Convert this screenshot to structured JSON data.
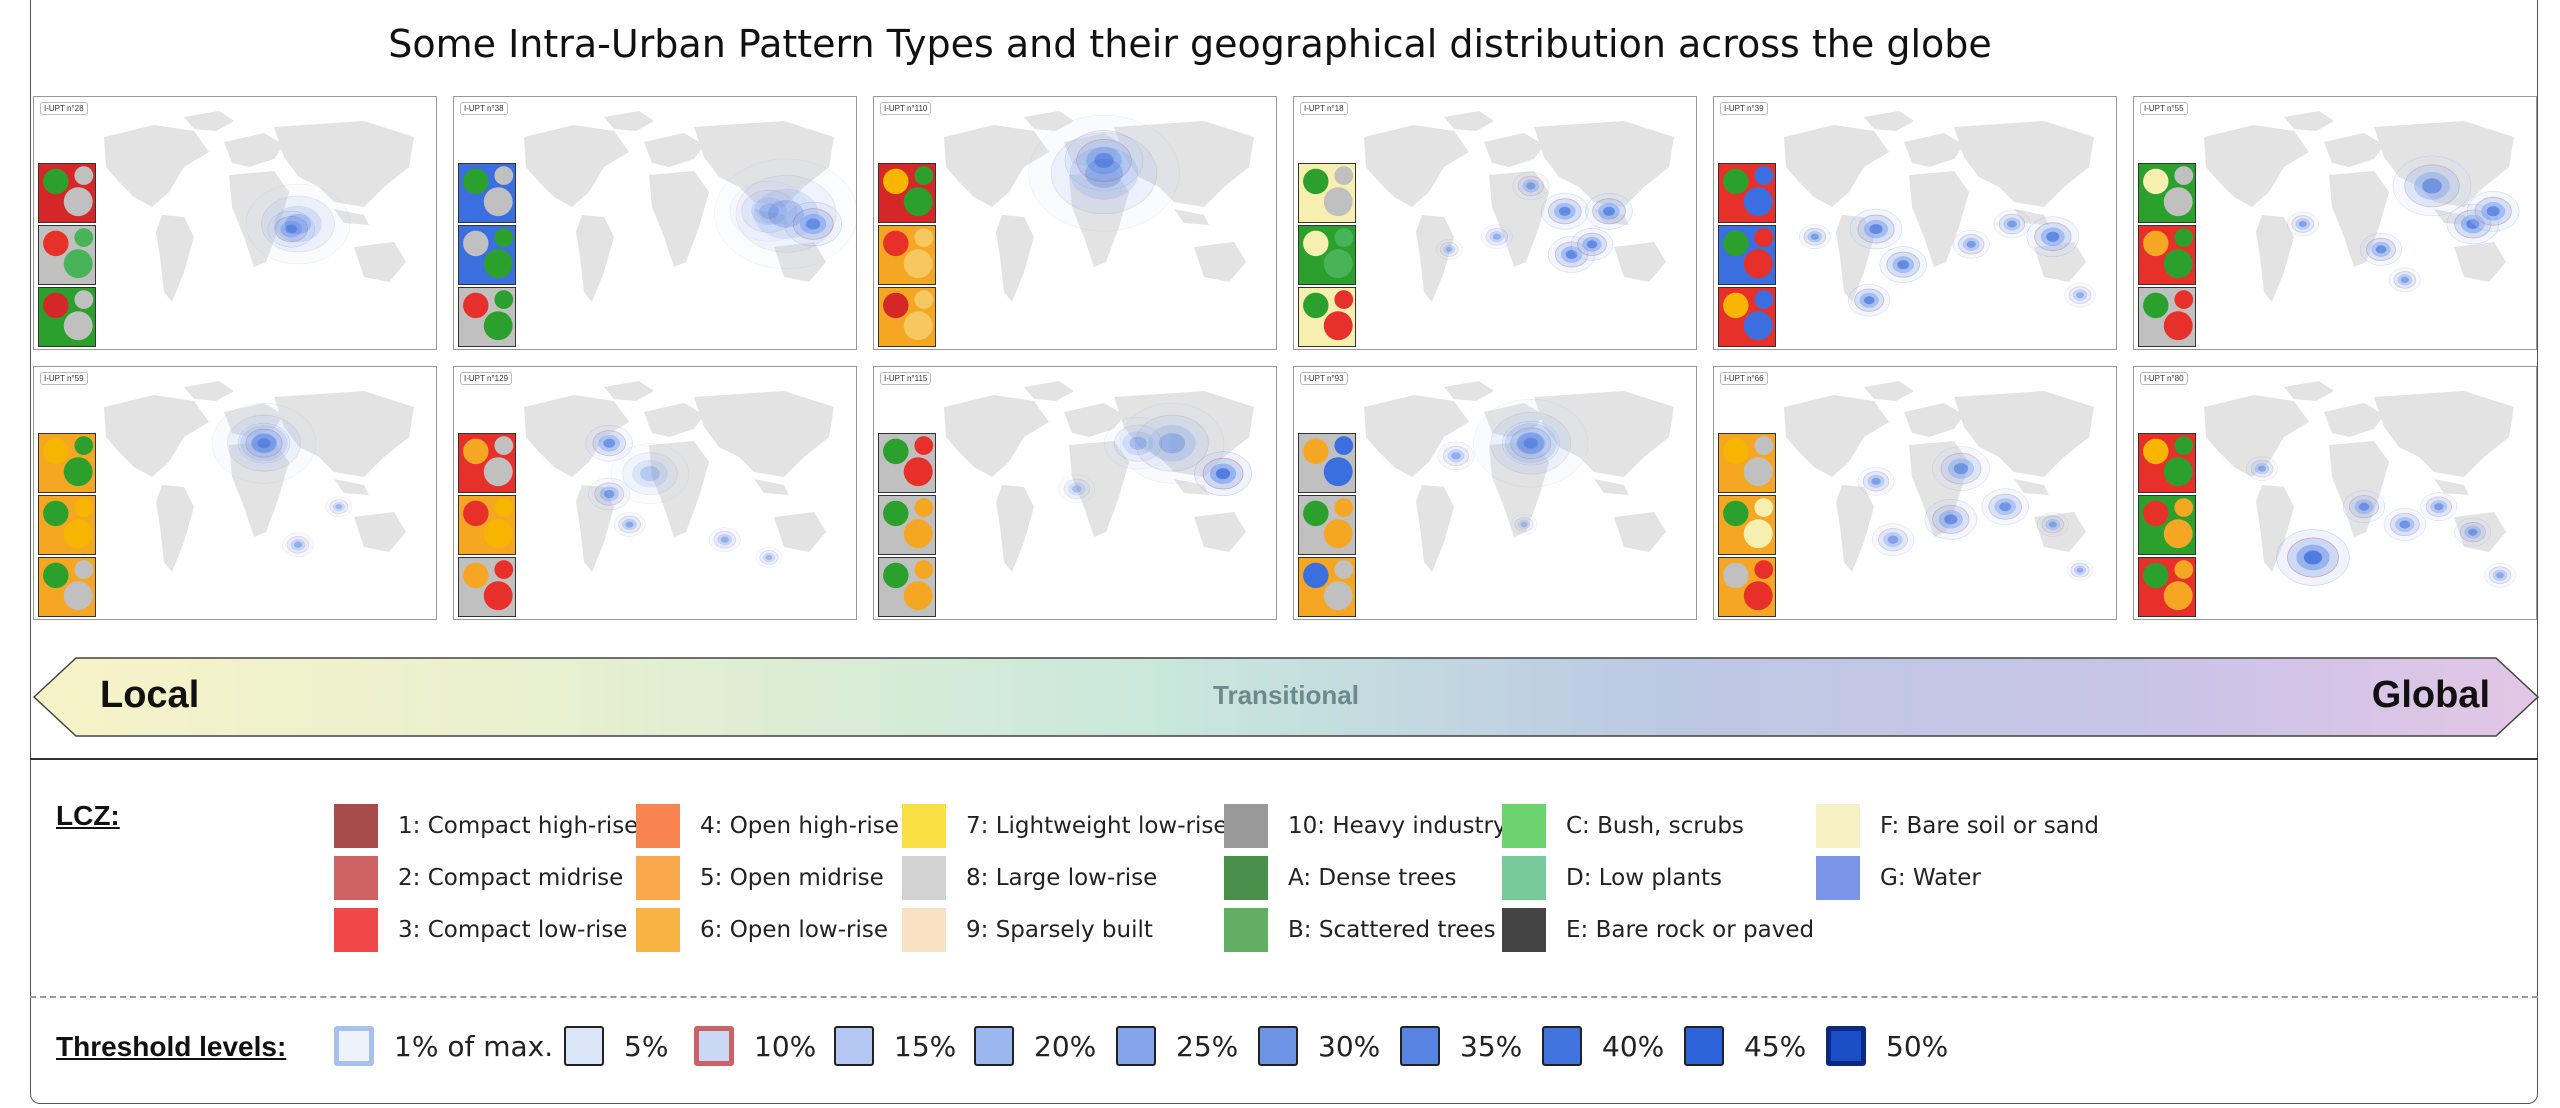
{
  "title": "Some Intra-Urban Pattern Types and their geographical distribution across the globe",
  "panels": [
    {
      "label": "I-UPT n°28",
      "insets": [
        [
          "#d62728",
          "#2ca02c",
          "#c0c0c0"
        ],
        [
          "#c0c0c0",
          "#e8302a",
          "#49b35a"
        ],
        [
          "#2ca02c",
          "#d62728",
          "#c0c0c0"
        ]
      ],
      "blobs": [
        [
          0.58,
          0.52,
          18,
          0.85
        ],
        [
          0.6,
          0.5,
          40,
          0.3
        ]
      ]
    },
    {
      "label": "I-UPT n°38",
      "insets": [
        [
          "#3b6fe0",
          "#2ca02c",
          "#c0c0c0"
        ],
        [
          "#3b6fe0",
          "#c0c0c0",
          "#2ca02c"
        ],
        [
          "#c0c0c0",
          "#e8302a",
          "#2ca02c"
        ]
      ],
      "blobs": [
        [
          0.88,
          0.5,
          22,
          0.85
        ],
        [
          0.75,
          0.45,
          30,
          0.35
        ],
        [
          0.8,
          0.46,
          55,
          0.25
        ]
      ]
    },
    {
      "label": "I-UPT n°110",
      "insets": [
        [
          "#d62728",
          "#f7b500",
          "#2ca02c"
        ],
        [
          "#f5a623",
          "#e8302a",
          "#f7c760"
        ],
        [
          "#f5a623",
          "#d62728",
          "#f7c760"
        ]
      ],
      "blobs": [
        [
          0.5,
          0.25,
          30,
          0.85
        ],
        [
          0.5,
          0.3,
          58,
          0.3
        ]
      ]
    },
    {
      "label": "I-UPT n°18",
      "insets": [
        [
          "#f7efb0",
          "#2ca02c",
          "#c0c0c0"
        ],
        [
          "#2ca02c",
          "#f7efb0",
          "#49b35a"
        ],
        [
          "#f7efb0",
          "#2ca02c",
          "#e8302a"
        ]
      ],
      "blobs": [
        [
          0.62,
          0.45,
          18,
          0.7
        ],
        [
          0.75,
          0.45,
          18,
          0.7
        ],
        [
          0.64,
          0.62,
          18,
          0.7
        ],
        [
          0.7,
          0.58,
          16,
          0.7
        ],
        [
          0.52,
          0.35,
          14,
          0.5
        ],
        [
          0.42,
          0.55,
          12,
          0.4
        ],
        [
          0.28,
          0.6,
          10,
          0.35
        ]
      ]
    },
    {
      "label": "I-UPT n°39",
      "insets": [
        [
          "#e8302a",
          "#2ca02c",
          "#3b6fe0"
        ],
        [
          "#3b6fe0",
          "#2ca02c",
          "#e8302a"
        ],
        [
          "#e8302a",
          "#f7b500",
          "#3b6fe0"
        ]
      ],
      "blobs": [
        [
          0.3,
          0.52,
          20,
          0.7
        ],
        [
          0.38,
          0.66,
          18,
          0.7
        ],
        [
          0.28,
          0.8,
          16,
          0.7
        ],
        [
          0.58,
          0.58,
          14,
          0.55
        ],
        [
          0.7,
          0.5,
          14,
          0.55
        ],
        [
          0.82,
          0.55,
          20,
          0.7
        ],
        [
          0.9,
          0.78,
          12,
          0.4
        ],
        [
          0.12,
          0.55,
          12,
          0.55
        ]
      ]
    },
    {
      "label": "I-UPT n°55",
      "insets": [
        [
          "#2ca02c",
          "#f7efb0",
          "#c0c0c0"
        ],
        [
          "#e8302a",
          "#f5a623",
          "#2ca02c"
        ],
        [
          "#c0c0c0",
          "#2ca02c",
          "#e8302a"
        ]
      ],
      "blobs": [
        [
          0.7,
          0.35,
          30,
          0.55
        ],
        [
          0.82,
          0.5,
          20,
          0.75
        ],
        [
          0.88,
          0.45,
          20,
          0.7
        ],
        [
          0.55,
          0.6,
          16,
          0.65
        ],
        [
          0.62,
          0.72,
          12,
          0.5
        ],
        [
          0.32,
          0.5,
          12,
          0.5
        ]
      ]
    },
    {
      "label": "I-UPT n°59",
      "insets": [
        [
          "#f5a623",
          "#f7b500",
          "#2ca02c"
        ],
        [
          "#f5a623",
          "#2ca02c",
          "#f7b500"
        ],
        [
          "#f5a623",
          "#2ca02c",
          "#c0c0c0"
        ]
      ],
      "blobs": [
        [
          0.5,
          0.3,
          20,
          0.85
        ],
        [
          0.5,
          0.3,
          40,
          0.3
        ],
        [
          0.6,
          0.7,
          12,
          0.4
        ],
        [
          0.72,
          0.55,
          10,
          0.35
        ]
      ]
    },
    {
      "label": "I-UPT n°129",
      "insets": [
        [
          "#e8302a",
          "#f5a623",
          "#c0c0c0"
        ],
        [
          "#f5a623",
          "#e8302a",
          "#f7b500"
        ],
        [
          "#c0c0c0",
          "#f5a623",
          "#e8302a"
        ]
      ],
      "blobs": [
        [
          0.28,
          0.3,
          18,
          0.6
        ],
        [
          0.28,
          0.5,
          16,
          0.55
        ],
        [
          0.34,
          0.62,
          12,
          0.45
        ],
        [
          0.62,
          0.68,
          12,
          0.4
        ],
        [
          0.75,
          0.75,
          10,
          0.35
        ],
        [
          0.4,
          0.42,
          30,
          0.25
        ]
      ]
    },
    {
      "label": "I-UPT n°115",
      "insets": [
        [
          "#c0c0c0",
          "#2ca02c",
          "#e8302a"
        ],
        [
          "#c0c0c0",
          "#2ca02c",
          "#f5a623"
        ],
        [
          "#c0c0c0",
          "#2ca02c",
          "#f5a623"
        ]
      ],
      "blobs": [
        [
          0.85,
          0.42,
          22,
          0.85
        ],
        [
          0.7,
          0.3,
          40,
          0.35
        ],
        [
          0.6,
          0.3,
          26,
          0.3
        ],
        [
          0.42,
          0.48,
          14,
          0.3
        ]
      ]
    },
    {
      "label": "I-UPT n°93",
      "insets": [
        [
          "#c0c0c0",
          "#f5a623",
          "#3b6fe0"
        ],
        [
          "#c0c0c0",
          "#2ca02c",
          "#f5a623"
        ],
        [
          "#f5a623",
          "#3b6fe0",
          "#c0c0c0"
        ]
      ],
      "blobs": [
        [
          0.52,
          0.3,
          22,
          0.75
        ],
        [
          0.52,
          0.3,
          44,
          0.3
        ],
        [
          0.3,
          0.35,
          14,
          0.4
        ],
        [
          0.5,
          0.62,
          10,
          0.3
        ]
      ]
    },
    {
      "label": "I-UPT n°66",
      "insets": [
        [
          "#f5a623",
          "#f7b500",
          "#c0c0c0"
        ],
        [
          "#f5a623",
          "#2ca02c",
          "#f7efb0"
        ],
        [
          "#f5a623",
          "#c0c0c0",
          "#e8302a"
        ]
      ],
      "blobs": [
        [
          0.55,
          0.4,
          22,
          0.55
        ],
        [
          0.52,
          0.6,
          20,
          0.65
        ],
        [
          0.68,
          0.55,
          18,
          0.6
        ],
        [
          0.3,
          0.45,
          14,
          0.5
        ],
        [
          0.35,
          0.68,
          16,
          0.5
        ],
        [
          0.82,
          0.62,
          12,
          0.45
        ],
        [
          0.9,
          0.8,
          10,
          0.4
        ]
      ]
    },
    {
      "label": "I-UPT n°80",
      "insets": [
        [
          "#e8302a",
          "#f7b500",
          "#2ca02c"
        ],
        [
          "#2ca02c",
          "#e8302a",
          "#f5a623"
        ],
        [
          "#e8302a",
          "#2ca02c",
          "#f5a623"
        ]
      ],
      "blobs": [
        [
          0.35,
          0.75,
          28,
          0.85
        ],
        [
          0.5,
          0.55,
          16,
          0.6
        ],
        [
          0.62,
          0.62,
          16,
          0.6
        ],
        [
          0.72,
          0.55,
          14,
          0.55
        ],
        [
          0.82,
          0.65,
          14,
          0.55
        ],
        [
          0.9,
          0.82,
          12,
          0.45
        ],
        [
          0.2,
          0.4,
          12,
          0.45
        ]
      ]
    }
  ],
  "arrow": {
    "left_label": "Local",
    "right_label": "Global",
    "mid_label": "Transitional",
    "colors": [
      "#f7f3c8",
      "#e9f0cf",
      "#c9e8dc",
      "#bcc9e3",
      "#c9c4e8",
      "#e3c6e6"
    ]
  },
  "lcz": {
    "heading": "LCZ:",
    "items": [
      {
        "label": "1: Compact high-rise",
        "color": "#a84b4b"
      },
      {
        "label": "2: Compact midrise",
        "color": "#cd6363"
      },
      {
        "label": "3: Compact low-rise",
        "color": "#f04848"
      },
      {
        "label": "4: Open high-rise",
        "color": "#f98450"
      },
      {
        "label": "5: Open midrise",
        "color": "#f9a84b"
      },
      {
        "label": "6: Open low-rise",
        "color": "#f9b244"
      },
      {
        "label": "7: Lightweight low-rise",
        "color": "#f9df42"
      },
      {
        "label": "8: Large low-rise",
        "color": "#d2d2d2"
      },
      {
        "label": "9: Sparsely built",
        "color": "#f8e2c2"
      },
      {
        "label": "10: Heavy industry",
        "color": "#999999"
      },
      {
        "label": "A: Dense trees",
        "color": "#4a8f4c"
      },
      {
        "label": "B: Scattered trees",
        "color": "#62ae64"
      },
      {
        "label": "C: Bush, scrubs",
        "color": "#6dd36f"
      },
      {
        "label": "D: Low plants",
        "color": "#77c99a"
      },
      {
        "label": "E: Bare rock or paved",
        "color": "#444444"
      },
      {
        "label": "F: Bare soil or sand",
        "color": "#f7f0c3"
      },
      {
        "label": "G: Water",
        "color": "#7a95e6"
      }
    ]
  },
  "thresholds": {
    "heading": "Threshold levels:",
    "items": [
      {
        "label": "1% of max.",
        "fill": "#eef2fb",
        "stroke": "#a8c0ec",
        "thick": true
      },
      {
        "label": "5%",
        "fill": "#dbe5f8",
        "stroke": "#222222",
        "thick": false
      },
      {
        "label": "10%",
        "fill": "#cbd8f5",
        "stroke": "#c96363",
        "thick": true
      },
      {
        "label": "15%",
        "fill": "#b3c7f2",
        "stroke": "#222222",
        "thick": false
      },
      {
        "label": "20%",
        "fill": "#9cb6ee",
        "stroke": "#222222",
        "thick": false
      },
      {
        "label": "25%",
        "fill": "#84a5ea",
        "stroke": "#222222",
        "thick": false
      },
      {
        "label": "30%",
        "fill": "#6e94e6",
        "stroke": "#222222",
        "thick": false
      },
      {
        "label": "35%",
        "fill": "#5784e3",
        "stroke": "#222222",
        "thick": false
      },
      {
        "label": "40%",
        "fill": "#4274de",
        "stroke": "#222222",
        "thick": false
      },
      {
        "label": "45%",
        "fill": "#2c63d9",
        "stroke": "#222222",
        "thick": false
      },
      {
        "label": "50%",
        "fill": "#1a4fc8",
        "stroke": "#0a2a80",
        "thick": true
      }
    ]
  }
}
